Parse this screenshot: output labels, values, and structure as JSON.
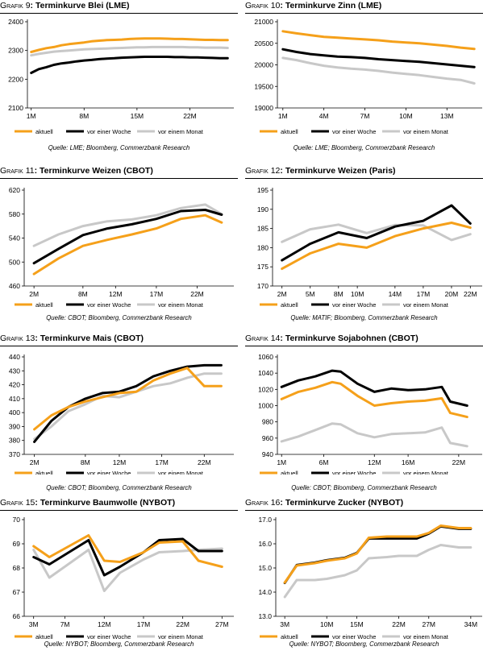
{
  "colors": {
    "aktuell": "#f5a01a",
    "woche": "#000000",
    "monat": "#c8c8c8"
  },
  "legend": {
    "aktuell": "aktuell",
    "woche": "vor einer Woche",
    "monat": "vor einem Monat"
  },
  "panels": [
    {
      "prefix": "Grafik 9",
      "title": "Terminkurve Blei (LME)",
      "source": "Quelle: LME; Bloomberg, Commerzbank Research"
    },
    {
      "prefix": "Grafik 10",
      "title": "Terminkurve Zinn (LME)",
      "source": "Quelle: LME; Bloomberg, Commerzbank Research"
    },
    {
      "prefix": "Grafik 11",
      "title": "Terminkurve Weizen (CBOT)",
      "source": "Quelle: CBOT; Bloomberg, Commerzbank Research"
    },
    {
      "prefix": "Grafik 12",
      "title": "Terminkurve Weizen (Paris)",
      "source": "Quelle: MATIF; Bloomberg, Commerzbank Research"
    },
    {
      "prefix": "Grafik 13",
      "title": "Terminkurve Mais (CBOT)",
      "source": "Quelle: CBOT; Bloomberg, Commerzbank Research"
    },
    {
      "prefix": "Grafik 14",
      "title": "Terminkurve Sojabohnen (CBOT)",
      "source": "Quelle: CBOT; Bloomberg, Commerzbank Research"
    },
    {
      "prefix": "Grafik 15",
      "title": "Terminkurve Baumwolle (NYBOT)",
      "source": "Quelle: NYBOT; Bloomberg, Commerzbank Research"
    },
    {
      "prefix": "Grafik 16",
      "title": "Terminkurve Zucker (NYBOT)",
      "source": "Quelle: NYBOT; Bloomberg, Commerzbank Research"
    }
  ],
  "chart_data": [
    {
      "type": "line",
      "x": [
        1,
        2,
        3,
        4,
        5,
        6,
        7,
        8,
        9,
        10,
        11,
        12,
        13,
        14,
        15,
        16,
        17,
        18,
        19,
        20,
        21,
        22,
        23,
        24,
        25,
        26,
        27
      ],
      "xticks": [
        1,
        8,
        15,
        22
      ],
      "xtick_labels": [
        "1M",
        "8M",
        "15M",
        "22M"
      ],
      "xlim": [
        0.5,
        27.5
      ],
      "ylim": [
        2100,
        2400
      ],
      "yticks": [
        2100,
        2200,
        2300,
        2400
      ],
      "ytick_labels": [
        "2100",
        "2200",
        "2300",
        "2400"
      ],
      "series": [
        {
          "name": "aktuell",
          "values": [
            2295,
            2302,
            2308,
            2312,
            2318,
            2322,
            2325,
            2328,
            2332,
            2334,
            2336,
            2337,
            2338,
            2340,
            2341,
            2342,
            2342,
            2342,
            2341,
            2340,
            2340,
            2339,
            2338,
            2337,
            2337,
            2336,
            2336
          ]
        },
        {
          "name": "vor einer Woche",
          "values": [
            2222,
            2235,
            2242,
            2250,
            2255,
            2258,
            2262,
            2265,
            2267,
            2270,
            2272,
            2273,
            2275,
            2276,
            2277,
            2278,
            2278,
            2278,
            2278,
            2277,
            2277,
            2276,
            2276,
            2275,
            2274,
            2273,
            2273
          ]
        },
        {
          "name": "vor einem Monat",
          "values": [
            2283,
            2288,
            2292,
            2296,
            2298,
            2300,
            2302,
            2304,
            2305,
            2306,
            2307,
            2308,
            2309,
            2310,
            2311,
            2311,
            2312,
            2312,
            2312,
            2312,
            2312,
            2311,
            2311,
            2310,
            2310,
            2310,
            2309
          ]
        }
      ]
    },
    {
      "type": "line",
      "x": [
        1,
        2,
        3,
        4,
        5,
        6,
        7,
        8,
        9,
        10,
        11,
        12,
        13,
        14,
        15
      ],
      "xticks": [
        1,
        4,
        7,
        10,
        13
      ],
      "xtick_labels": [
        "1M",
        "4M",
        "7M",
        "10M",
        "13M"
      ],
      "xlim": [
        0.6,
        15.4
      ],
      "ylim": [
        19000,
        21000
      ],
      "yticks": [
        19000,
        19500,
        20000,
        20500,
        21000
      ],
      "ytick_labels": [
        "19000",
        "19500",
        "20000",
        "20500",
        "21000"
      ],
      "series": [
        {
          "name": "aktuell",
          "values": [
            20780,
            20730,
            20690,
            20650,
            20630,
            20610,
            20590,
            20570,
            20540,
            20520,
            20500,
            20470,
            20440,
            20400,
            20370
          ]
        },
        {
          "name": "vor einer Woche",
          "values": [
            20360,
            20300,
            20250,
            20220,
            20190,
            20180,
            20160,
            20130,
            20110,
            20090,
            20070,
            20040,
            20010,
            19980,
            19950
          ]
        },
        {
          "name": "vor einem Monat",
          "values": [
            20160,
            20110,
            20040,
            19980,
            19940,
            19910,
            19890,
            19860,
            19820,
            19790,
            19760,
            19720,
            19680,
            19650,
            19570
          ]
        }
      ]
    },
    {
      "type": "line",
      "x": [
        2,
        5,
        8,
        11,
        14,
        17,
        20,
        23,
        25
      ],
      "xticks": [
        2,
        8,
        12,
        17,
        22
      ],
      "xtick_labels": [
        "2M",
        "8M",
        "12M",
        "17M",
        "22M"
      ],
      "xlim": [
        0.8,
        26.2
      ],
      "ylim": [
        460,
        620
      ],
      "yticks": [
        460,
        500,
        540,
        580,
        620
      ],
      "ytick_labels": [
        "460",
        "500",
        "540",
        "580",
        "620"
      ],
      "series": [
        {
          "name": "aktuell",
          "values": [
            480,
            506,
            527,
            537,
            546,
            556,
            572,
            578,
            566
          ]
        },
        {
          "name": "vor einer Woche",
          "values": [
            498,
            522,
            545,
            556,
            563,
            572,
            585,
            587,
            579
          ]
        },
        {
          "name": "vor einem Monat",
          "values": [
            527,
            546,
            560,
            568,
            571,
            578,
            590,
            596,
            580
          ]
        }
      ]
    },
    {
      "type": "line",
      "x": [
        2,
        5,
        8,
        11,
        14,
        17,
        20,
        22
      ],
      "xticks": [
        2,
        5,
        8,
        10,
        14,
        17,
        20,
        22
      ],
      "xtick_labels": [
        "2M",
        "5M",
        "8M",
        "10M",
        "14M",
        "17M",
        "20M",
        "22M"
      ],
      "xlim": [
        1,
        23
      ],
      "ylim": [
        170,
        195
      ],
      "yticks": [
        170,
        175,
        180,
        185,
        190,
        195
      ],
      "ytick_labels": [
        "170",
        "175",
        "180",
        "185",
        "190",
        "195"
      ],
      "series": [
        {
          "name": "aktuell",
          "values": [
            174.5,
            178.5,
            181,
            180,
            183,
            185,
            186.5,
            185.2
          ]
        },
        {
          "name": "vor einer Woche",
          "values": [
            176.7,
            181,
            184,
            182.5,
            185.5,
            187,
            191,
            186.3
          ]
        },
        {
          "name": "vor einem Monat",
          "values": [
            181.5,
            184.8,
            186,
            183.8,
            185.9,
            185.8,
            182,
            183.5
          ]
        }
      ]
    },
    {
      "type": "line",
      "x": [
        2,
        4,
        6,
        8,
        10,
        12,
        14,
        16,
        18,
        20,
        22,
        24
      ],
      "xticks": [
        2,
        8,
        12,
        17,
        22
      ],
      "xtick_labels": [
        "2M",
        "8M",
        "12M",
        "17M",
        "22M"
      ],
      "xlim": [
        0.8,
        25.2
      ],
      "ylim": [
        370,
        440
      ],
      "yticks": [
        370,
        380,
        390,
        400,
        410,
        420,
        430,
        440
      ],
      "ytick_labels": [
        "370",
        "380",
        "390",
        "400",
        "410",
        "420",
        "430",
        "440"
      ],
      "series": [
        {
          "name": "aktuell",
          "values": [
            388,
            398,
            404,
            408,
            411,
            414,
            415,
            423,
            428,
            432,
            419,
            419
          ]
        },
        {
          "name": "vor einer Woche",
          "values": [
            379,
            394,
            404,
            410,
            414,
            415,
            419,
            426,
            430,
            433,
            434,
            434
          ]
        },
        {
          "name": "vor einem Monat",
          "values": [
            381,
            390,
            401,
            406,
            412,
            411,
            415,
            419,
            421,
            425,
            428,
            428
          ]
        }
      ]
    },
    {
      "type": "line",
      "x": [
        1,
        3,
        5,
        7,
        8,
        10,
        12,
        14,
        16,
        18,
        20,
        21,
        23
      ],
      "xticks": [
        1,
        6,
        12,
        16,
        22
      ],
      "xtick_labels": [
        "1M",
        "6M",
        "12M",
        "16M",
        "22M"
      ],
      "xlim": [
        0.5,
        24.5
      ],
      "ylim": [
        940,
        1060
      ],
      "yticks": [
        940,
        960,
        980,
        1000,
        1020,
        1040,
        1060
      ],
      "ytick_labels": [
        "940",
        "960",
        "980",
        "1000",
        "1020",
        "1040",
        "1060"
      ],
      "series": [
        {
          "name": "aktuell",
          "values": [
            1008,
            1017,
            1022,
            1029,
            1027,
            1012,
            1000,
            1003,
            1005,
            1006,
            1009,
            991,
            986
          ]
        },
        {
          "name": "vor einer Woche",
          "values": [
            1023,
            1031,
            1036,
            1043,
            1042,
            1027,
            1017,
            1021,
            1019,
            1020,
            1023,
            1005,
            1000
          ]
        },
        {
          "name": "vor einem Monat",
          "values": [
            956,
            962,
            970,
            978,
            977,
            966,
            961,
            965,
            966,
            967,
            973,
            954,
            950
          ]
        }
      ]
    },
    {
      "type": "line",
      "x": [
        3,
        5,
        10,
        12,
        14,
        17,
        19,
        22,
        24,
        27
      ],
      "xticks": [
        3,
        7,
        12,
        17,
        22,
        27
      ],
      "xtick_labels": [
        "3M",
        "7M",
        "12M",
        "17M",
        "22M",
        "27M"
      ],
      "xlim": [
        1.8,
        28.2
      ],
      "ylim": [
        66,
        70
      ],
      "yticks": [
        66,
        67,
        68,
        69,
        70
      ],
      "ytick_labels": [
        "66",
        "67",
        "68",
        "69",
        "70"
      ],
      "series": [
        {
          "name": "aktuell",
          "values": [
            68.9,
            68.45,
            69.35,
            68.3,
            68.25,
            68.65,
            69.05,
            69.1,
            68.3,
            68.05
          ]
        },
        {
          "name": "vor einer Woche",
          "values": [
            68.45,
            68.15,
            69.15,
            67.7,
            68.05,
            68.65,
            69.15,
            69.2,
            68.7,
            68.7
          ]
        },
        {
          "name": "vor einem Monat",
          "values": [
            68.75,
            67.6,
            68.75,
            67.05,
            67.8,
            68.35,
            68.65,
            68.7,
            68.75,
            68.8
          ]
        }
      ]
    },
    {
      "type": "line",
      "x": [
        3,
        5,
        8,
        10,
        13,
        15,
        17,
        20,
        22,
        25,
        27,
        29,
        32,
        34
      ],
      "xticks": [
        3,
        10,
        15,
        22,
        27,
        34
      ],
      "xtick_labels": [
        "3M",
        "10M",
        "15M",
        "22M",
        "27M",
        "34M"
      ],
      "xlim": [
        1.5,
        35.5
      ],
      "ylim": [
        13,
        17
      ],
      "yticks": [
        13,
        14,
        15,
        16,
        17
      ],
      "ytick_labels": [
        "13.0",
        "14.0",
        "15.0",
        "16.0",
        "17.0"
      ],
      "series": [
        {
          "name": "aktuell",
          "values": [
            14.4,
            15.1,
            15.2,
            15.3,
            15.4,
            15.6,
            16.25,
            16.3,
            16.3,
            16.3,
            16.45,
            16.75,
            16.65,
            16.65
          ]
        },
        {
          "name": "vor einer Woche",
          "values": [
            14.38,
            15.12,
            15.22,
            15.32,
            15.42,
            15.62,
            16.22,
            16.22,
            16.22,
            16.22,
            16.42,
            16.72,
            16.62,
            16.62
          ]
        },
        {
          "name": "vor einem Monat",
          "values": [
            13.8,
            14.5,
            14.5,
            14.55,
            14.7,
            14.9,
            15.4,
            15.45,
            15.5,
            15.5,
            15.75,
            15.95,
            15.85,
            15.85
          ]
        }
      ]
    }
  ]
}
